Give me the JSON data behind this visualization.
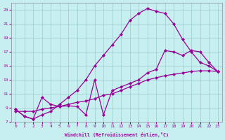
{
  "xlabel": "Windchill (Refroidissement éolien,°C)",
  "bg_color": "#c8efef",
  "line_color": "#990099",
  "grid_color": "#99cccc",
  "line1_x": [
    0,
    1,
    2,
    3,
    4,
    5,
    6,
    7,
    8,
    9,
    10,
    11,
    12,
    13,
    14,
    15,
    16,
    17,
    18,
    19,
    20,
    21,
    22,
    23
  ],
  "line1_y": [
    8.8,
    7.8,
    7.4,
    8.0,
    8.5,
    9.5,
    10.5,
    11.5,
    13.0,
    15.0,
    16.5,
    18.0,
    19.5,
    21.5,
    22.5,
    23.2,
    22.8,
    22.5,
    21.0,
    18.8,
    17.0,
    15.5,
    15.0,
    14.2
  ],
  "line2_x": [
    0,
    1,
    2,
    3,
    4,
    5,
    6,
    7,
    8,
    9,
    10,
    11,
    12,
    13,
    14,
    15,
    16,
    17,
    18,
    19,
    20,
    21,
    22,
    23
  ],
  "line2_y": [
    8.5,
    8.5,
    8.5,
    8.8,
    9.0,
    9.2,
    9.5,
    9.8,
    10.0,
    10.3,
    10.8,
    11.0,
    11.5,
    12.0,
    12.5,
    13.0,
    13.3,
    13.6,
    13.8,
    14.0,
    14.2,
    14.3,
    14.3,
    14.2
  ],
  "line3_x": [
    0,
    1,
    2,
    3,
    4,
    5,
    6,
    7,
    8,
    9,
    10,
    11,
    12,
    13,
    14,
    15,
    16,
    17,
    18,
    19,
    20,
    21,
    22,
    23
  ],
  "line3_y": [
    8.8,
    7.8,
    7.4,
    10.5,
    9.5,
    9.2,
    9.3,
    9.2,
    8.0,
    13.0,
    8.0,
    11.5,
    12.0,
    12.5,
    13.0,
    14.0,
    14.5,
    17.2,
    17.0,
    16.5,
    17.2,
    17.0,
    15.5,
    14.2
  ],
  "xlim": [
    -0.5,
    23.5
  ],
  "ylim": [
    7,
    24
  ],
  "yticks": [
    7,
    9,
    11,
    13,
    15,
    17,
    19,
    21,
    23
  ],
  "xticks": [
    0,
    1,
    2,
    3,
    4,
    5,
    6,
    7,
    8,
    9,
    10,
    11,
    12,
    13,
    14,
    15,
    16,
    17,
    18,
    19,
    20,
    21,
    22,
    23
  ]
}
